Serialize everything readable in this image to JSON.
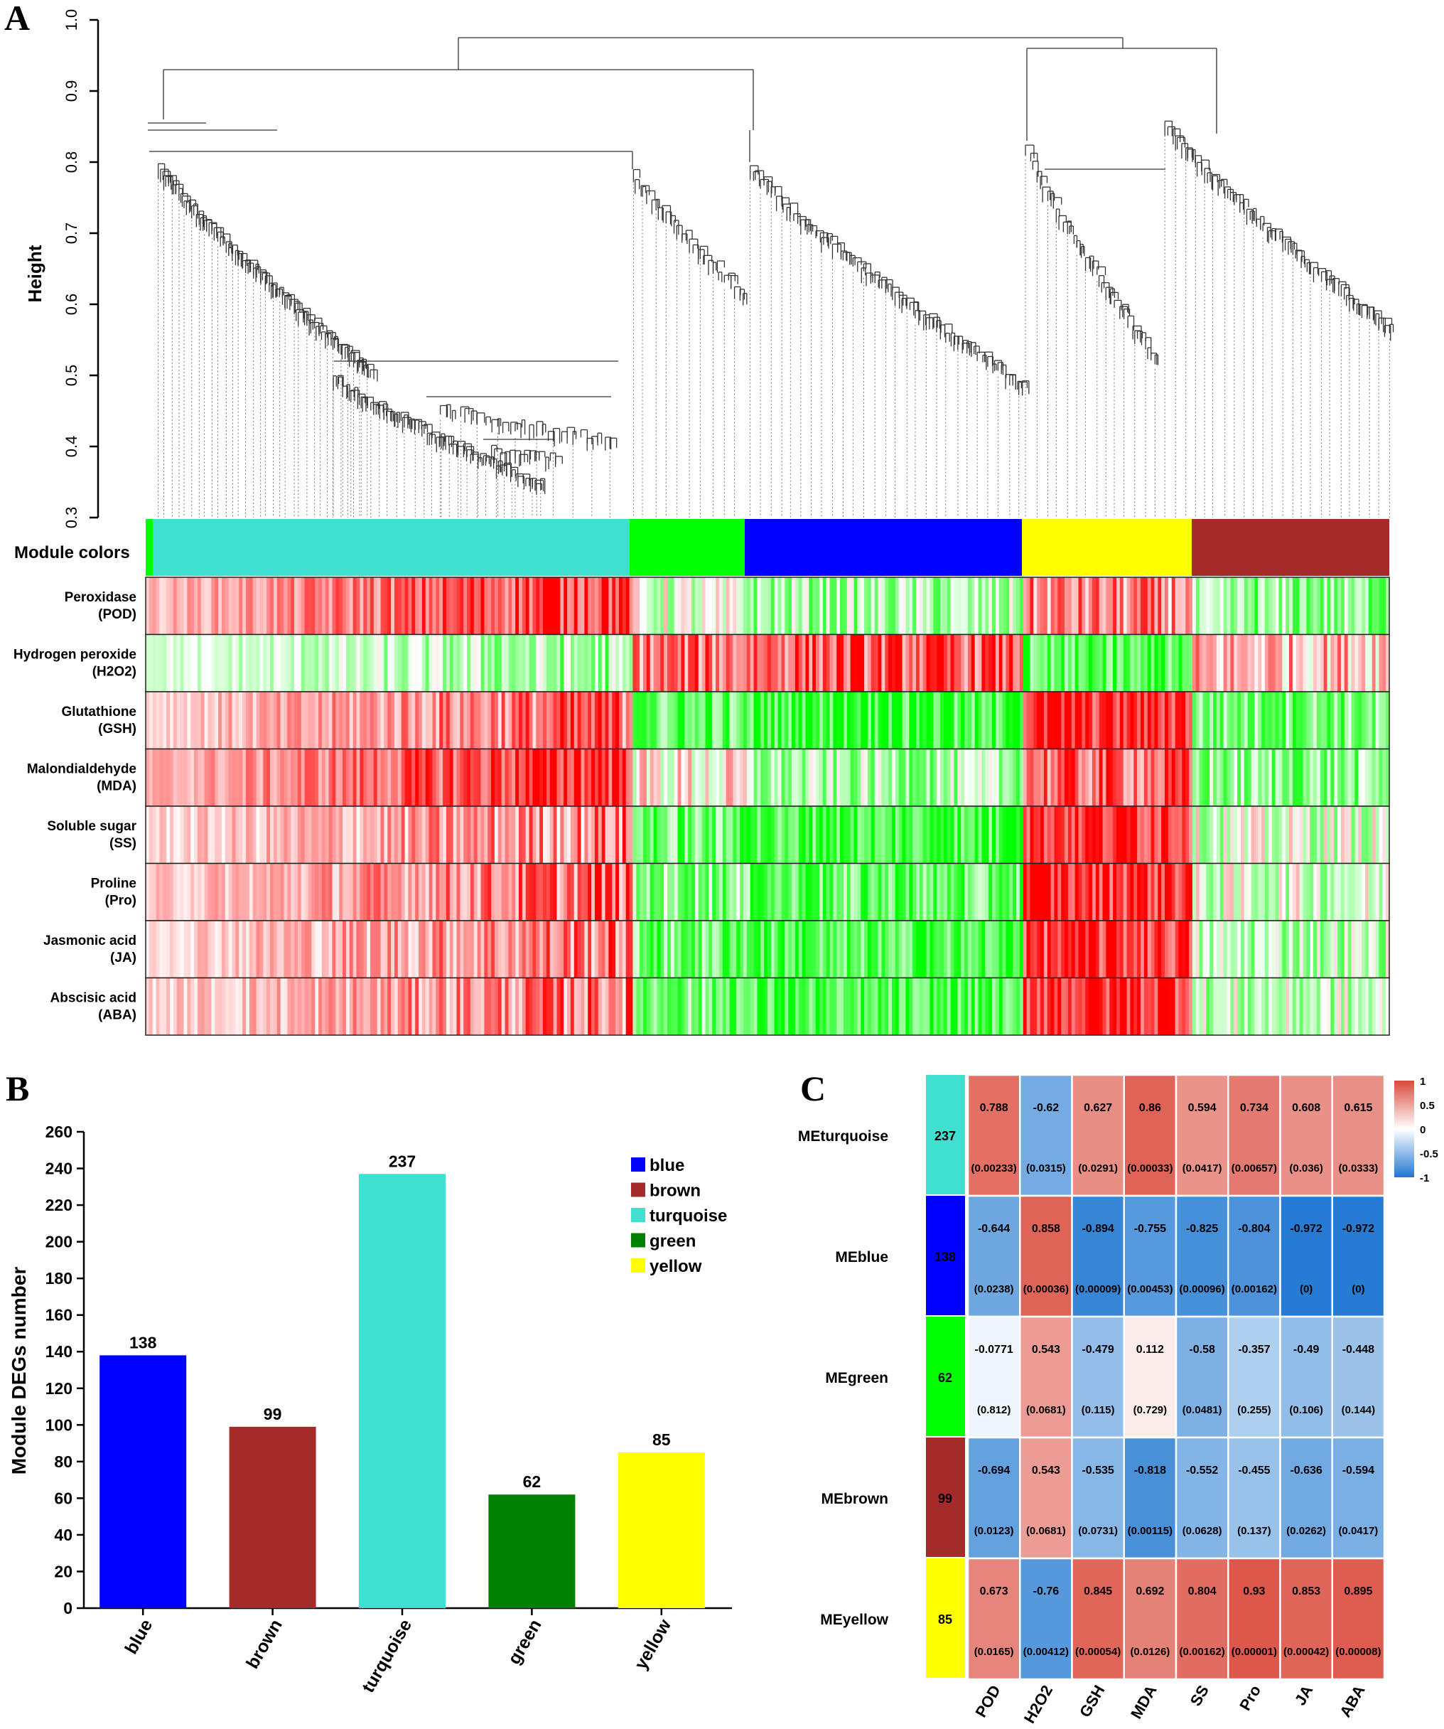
{
  "panels": {
    "a": {
      "letter": "A",
      "y_label": "Height",
      "y_ticks": [
        "0.3",
        "0.4",
        "0.5",
        "0.6",
        "0.7",
        "0.8",
        "0.9",
        "1.0"
      ],
      "y_range": [
        0.3,
        1.0
      ],
      "module_colors_label": "Module colors",
      "modules": [
        {
          "name": "turquoise",
          "color": "#40E0D0"
        },
        {
          "name": "green",
          "color": "#00FF00"
        },
        {
          "name": "blue",
          "color": "#0000FF"
        },
        {
          "name": "yellow",
          "color": "#FFFF00"
        },
        {
          "name": "brown",
          "color": "#A52A2A"
        }
      ],
      "traits": [
        {
          "line1": "Peroxidase",
          "line2": "(POD)"
        },
        {
          "line1": "Hydrogen peroxide",
          "line2": "(H2O2)"
        },
        {
          "line1": "Glutathione",
          "line2": "(GSH)"
        },
        {
          "line1": "Malondialdehyde",
          "line2": "(MDA)"
        },
        {
          "line1": "Soluble sugar",
          "line2": "(SS)"
        },
        {
          "line1": "Proline",
          "line2": "(Pro)"
        },
        {
          "line1": "Jasmonic acid",
          "line2": "(JA)"
        },
        {
          "line1": "Abscisic acid",
          "line2": "(ABA)"
        }
      ],
      "heat_low_color": "#00FF00",
      "heat_high_color": "#FF0000",
      "heat_mid_color": "#FFFFFF"
    },
    "b": {
      "letter": "B",
      "y_label": "Module DEGs number",
      "y_ticks": [
        "0",
        "20",
        "40",
        "60",
        "80",
        "100",
        "120",
        "140",
        "160",
        "180",
        "200",
        "220",
        "240",
        "260"
      ],
      "legend": [
        {
          "label": "blue",
          "color": "#0000FF"
        },
        {
          "label": "brown",
          "color": "#A52A2A"
        },
        {
          "label": "turquoise",
          "color": "#40E0D0"
        },
        {
          "label": "green",
          "color": "#008000"
        },
        {
          "label": "yellow",
          "color": "#FFFF00"
        }
      ]
    },
    "c": {
      "letter": "C",
      "scale_labels": [
        "1",
        "0.5",
        "0",
        "-0.5",
        "-1"
      ],
      "scale_colors": {
        "pos": "#DA4A3C",
        "neg": "#1F78D1"
      }
    }
  },
  "chart_data": [
    {
      "type": "bar",
      "title": "",
      "xlabel": "",
      "ylabel": "Module DEGs number",
      "categories": [
        "blue",
        "brown",
        "turquoise",
        "green",
        "yellow"
      ],
      "values": [
        138,
        99,
        237,
        62,
        85
      ],
      "data_labels": [
        "138",
        "99",
        "237",
        "62",
        "85"
      ],
      "colors": [
        "#0000FF",
        "#A52A2A",
        "#40E0D0",
        "#008000",
        "#FFFF00"
      ],
      "ylim": [
        0,
        260
      ]
    },
    {
      "type": "heatmap",
      "title": "",
      "rows": [
        "MEturquoise",
        "MEblue",
        "MEgreen",
        "MEbrown",
        "MEyellow"
      ],
      "row_sizes": [
        "237",
        "138",
        "62",
        "99",
        "85"
      ],
      "row_colors": [
        "#40E0D0",
        "#0000FF",
        "#00FF00",
        "#A52A2A",
        "#FFFF00"
      ],
      "columns": [
        "POD",
        "H2O2",
        "GSH",
        "MDA",
        "SS",
        "Pro",
        "JA",
        "ABA"
      ],
      "values": [
        [
          0.788,
          -0.62,
          0.627,
          0.86,
          0.594,
          0.734,
          0.608,
          0.615
        ],
        [
          -0.644,
          0.858,
          -0.894,
          -0.755,
          -0.825,
          -0.804,
          -0.972,
          -0.972
        ],
        [
          -0.0771,
          0.543,
          -0.479,
          0.112,
          -0.58,
          -0.357,
          -0.49,
          -0.448
        ],
        [
          -0.694,
          0.543,
          -0.535,
          -0.818,
          -0.552,
          -0.455,
          -0.636,
          -0.594
        ],
        [
          0.673,
          -0.76,
          0.845,
          0.692,
          0.804,
          0.93,
          0.853,
          0.895
        ]
      ],
      "value_labels": [
        [
          "0.788",
          "-0.62",
          "0.627",
          "0.86",
          "0.594",
          "0.734",
          "0.608",
          "0.615"
        ],
        [
          "-0.644",
          "0.858",
          "-0.894",
          "-0.755",
          "-0.825",
          "-0.804",
          "-0.972",
          "-0.972"
        ],
        [
          "-0.0771",
          "0.543",
          "-0.479",
          "0.112",
          "-0.58",
          "-0.357",
          "-0.49",
          "-0.448"
        ],
        [
          "-0.694",
          "0.543",
          "-0.535",
          "-0.818",
          "-0.552",
          "-0.455",
          "-0.636",
          "-0.594"
        ],
        [
          "0.673",
          "-0.76",
          "0.845",
          "0.692",
          "0.804",
          "0.93",
          "0.853",
          "0.895"
        ]
      ],
      "p_labels": [
        [
          "(0.00233)",
          "(0.0315)",
          "(0.0291)",
          "(0.00033)",
          "(0.0417)",
          "(0.00657)",
          "(0.036)",
          "(0.0333)"
        ],
        [
          "(0.0238)",
          "(0.00036)",
          "(0.00009)",
          "(0.00453)",
          "(0.00096)",
          "(0.00162)",
          "(0)",
          "(0)"
        ],
        [
          "(0.812)",
          "(0.0681)",
          "(0.115)",
          "(0.729)",
          "(0.0481)",
          "(0.255)",
          "(0.106)",
          "(0.144)"
        ],
        [
          "(0.0123)",
          "(0.0681)",
          "(0.0731)",
          "(0.00115)",
          "(0.0628)",
          "(0.137)",
          "(0.0262)",
          "(0.0417)"
        ],
        [
          "(0.0165)",
          "(0.00412)",
          "(0.00054)",
          "(0.0126)",
          "(0.00162)",
          "(0.00001)",
          "(0.00042)",
          "(0.00008)"
        ]
      ],
      "zlim": [
        -1,
        1
      ]
    }
  ]
}
